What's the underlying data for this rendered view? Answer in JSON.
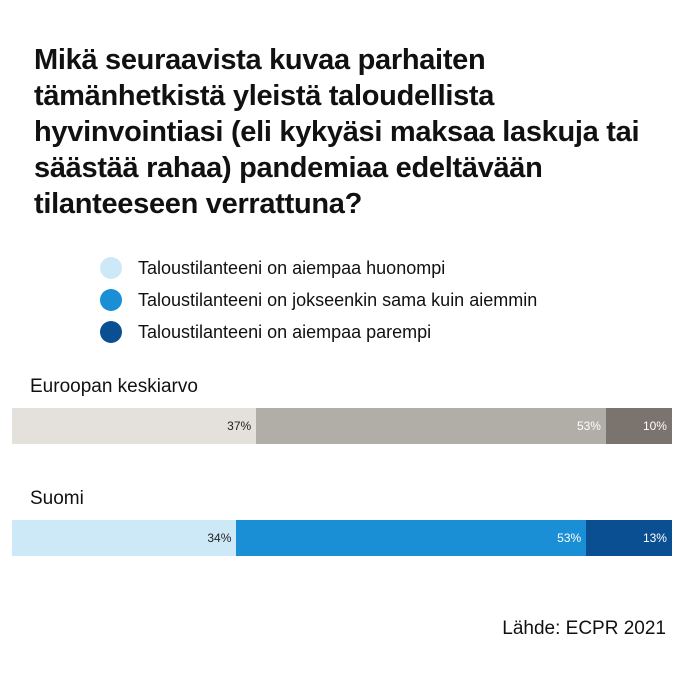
{
  "chart_data": {
    "type": "bar",
    "orientation": "horizontal-stacked",
    "title": "Mikä seuraavista kuvaa parhaiten tämänhetkistä yleistä taloudellista hyvinvointiasi (eli kykyäsi maksaa laskuja tai säästää rahaa) pandemiaa edeltävään tilanteeseen verrattuna?",
    "categories": [
      "Euroopan keskiarvo",
      "Suomi"
    ],
    "series": [
      {
        "name": "Taloustilanteeni on aiempaa huonompi",
        "values": [
          37,
          34
        ],
        "labels": [
          "37%",
          "34%"
        ],
        "legend_color": "#cde9f8",
        "colors": [
          "#e4e1dc",
          "#cde9f8"
        ]
      },
      {
        "name": "Taloustilanteeni on jokseenkin sama kuin aiemmin",
        "values": [
          53,
          53
        ],
        "labels": [
          "53%",
          "53%"
        ],
        "legend_color": "#1a8fd6",
        "colors": [
          "#b1ada7",
          "#1a8fd6"
        ]
      },
      {
        "name": "Taloustilanteeni on aiempaa parempi",
        "values": [
          10,
          13
        ],
        "labels": [
          "10%",
          "13%"
        ],
        "legend_color": "#0b4f93",
        "colors": [
          "#7a736e",
          "#0b4f93"
        ]
      }
    ],
    "label_colors": [
      [
        "#222222",
        "#ffffff",
        "#ffffff"
      ],
      [
        "#222222",
        "#ffffff",
        "#ffffff"
      ]
    ],
    "xlim": [
      0,
      100
    ],
    "legend_position": "top",
    "grid": false,
    "source": "Lähde: ECPR 2021"
  }
}
